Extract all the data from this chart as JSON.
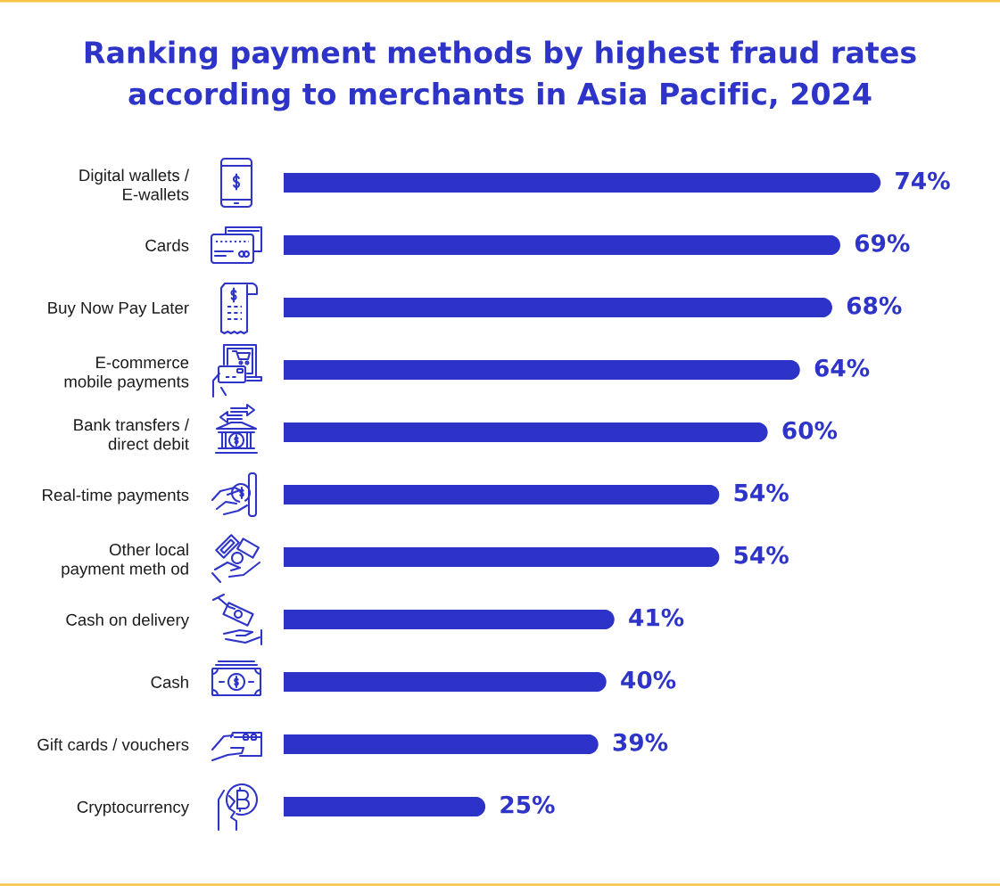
{
  "chart_data": {
    "type": "bar",
    "orientation": "horizontal",
    "title": "Ranking payment methods by highest fraud rates\naccording to merchants in Asia Pacific, 2024",
    "categories": [
      "Digital wallets /\nE-wallets",
      "Cards",
      "Buy Now Pay Later",
      "E-commerce\nmobile payments",
      "Bank transfers /\ndirect debit",
      "Real-time payments",
      "Other local\npayment meth od",
      "Cash on delivery",
      "Cash",
      "Gift cards / vouchers",
      "Cryptocurrency"
    ],
    "values": [
      74,
      69,
      68,
      64,
      60,
      54,
      54,
      41,
      40,
      39,
      25
    ],
    "value_labels": [
      "74%",
      "69%",
      "68%",
      "64%",
      "60%",
      "54%",
      "54%",
      "41%",
      "40%",
      "39%",
      "25%"
    ],
    "color": "#2d33c8",
    "tick_labels": "y"
  }
}
